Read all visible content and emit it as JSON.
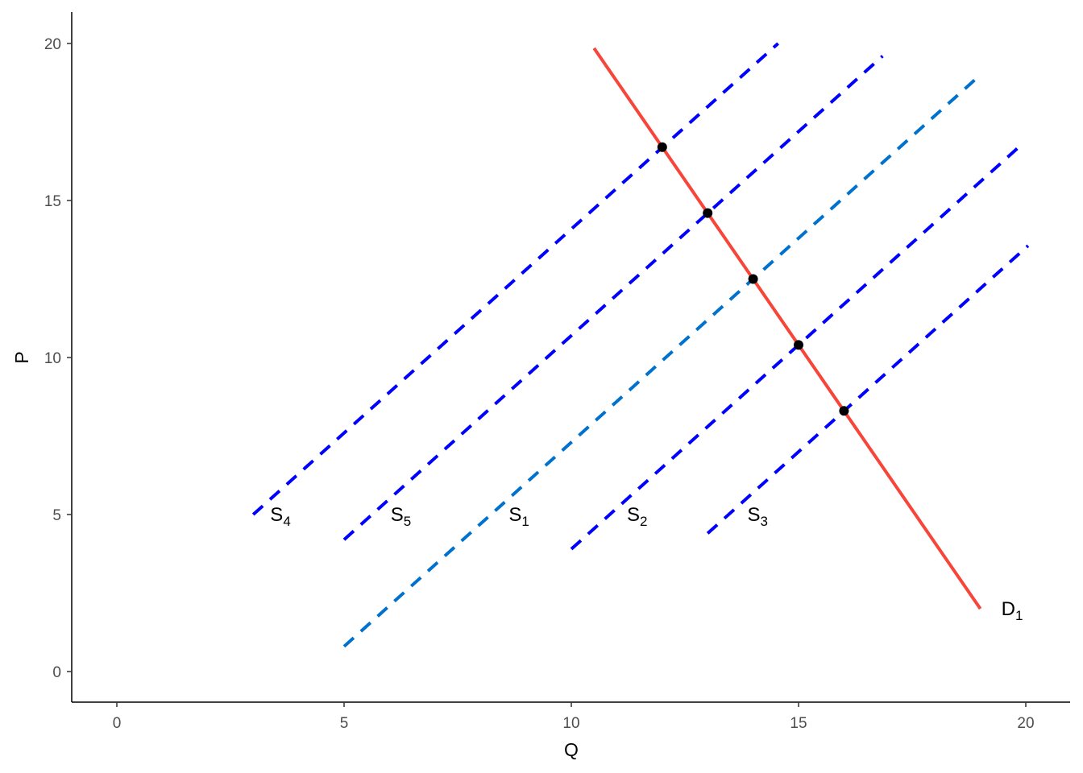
{
  "chart_data": {
    "type": "line",
    "title": "",
    "xlabel": "Q",
    "ylabel": "P",
    "xlim": [
      -1,
      21
    ],
    "ylim": [
      -1,
      21
    ],
    "xticks": [
      0,
      5,
      10,
      15,
      20
    ],
    "yticks": [
      0,
      5,
      10,
      15,
      20
    ],
    "grid": false,
    "series": [
      {
        "name": "S4",
        "base": "S",
        "sub": "4",
        "color": "#0000FF",
        "dash": true,
        "x": [
          3,
          14.55
        ],
        "y": [
          5.0,
          20.0
        ],
        "label_at": [
          3.6,
          5.0
        ]
      },
      {
        "name": "S5",
        "base": "S",
        "sub": "5",
        "color": "#0000FF",
        "dash": true,
        "x": [
          5,
          16.85
        ],
        "y": [
          4.2,
          19.6
        ],
        "label_at": [
          6.25,
          5.0
        ]
      },
      {
        "name": "S1",
        "base": "S",
        "sub": "1",
        "color": "#0072CE",
        "dash": true,
        "x": [
          5,
          19
        ],
        "y": [
          0.8,
          19.0
        ],
        "label_at": [
          8.85,
          5.0
        ]
      },
      {
        "name": "S2",
        "base": "S",
        "sub": "2",
        "color": "#0000FF",
        "dash": true,
        "x": [
          10,
          19.9
        ],
        "y": [
          3.9,
          16.77
        ],
        "label_at": [
          11.45,
          5.0
        ]
      },
      {
        "name": "S3",
        "base": "S",
        "sub": "3",
        "color": "#0000FF",
        "dash": true,
        "x": [
          13,
          20.05
        ],
        "y": [
          4.4,
          13.56
        ],
        "label_at": [
          14.1,
          5.0
        ]
      },
      {
        "name": "D1",
        "base": "D",
        "sub": "1",
        "color": "#F8453A",
        "dash": false,
        "x": [
          10.5,
          19
        ],
        "y": [
          19.85,
          2.0
        ],
        "label_at": [
          19.7,
          2.0
        ]
      }
    ],
    "points": {
      "x": [
        12,
        13,
        14,
        15,
        16
      ],
      "y": [
        16.7,
        14.6,
        12.5,
        10.4,
        8.3
      ],
      "color": "#000000"
    }
  }
}
